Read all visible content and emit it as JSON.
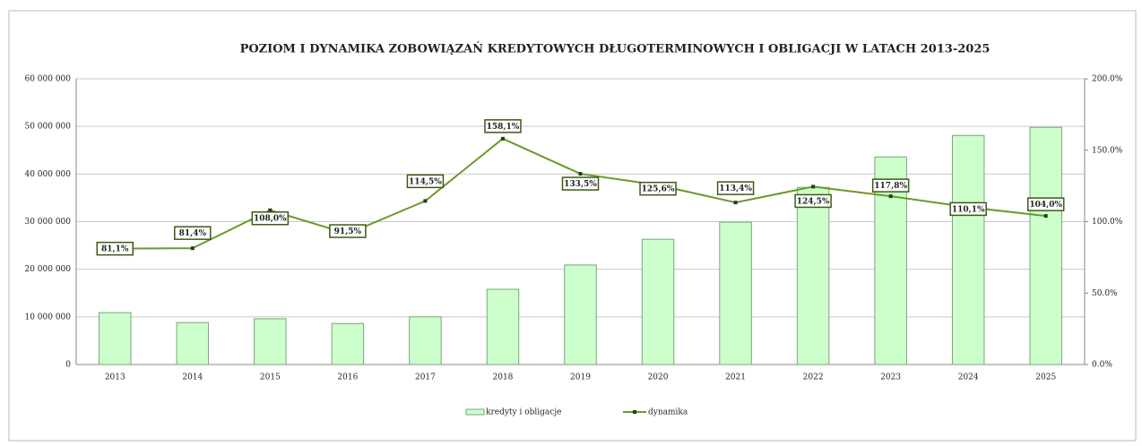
{
  "chart_data": {
    "type": "bar",
    "title": "POZIOM I DYNAMIKA ZOBOWIĄZAŃ KREDYTOWYCH DŁUGOTERMINOWYCH  I OBLIGACJI W LATACH 2013-2025",
    "categories": [
      "2013",
      "2014",
      "2015",
      "2016",
      "2017",
      "2018",
      "2019",
      "2020",
      "2021",
      "2022",
      "2023",
      "2024",
      "2025"
    ],
    "series": [
      {
        "name": "kredyty i obligacje",
        "type": "bar",
        "color": "#ccffcc",
        "values": [
          10900000,
          8800000,
          9600000,
          8600000,
          10000000,
          15800000,
          20900000,
          26300000,
          29900000,
          37200000,
          43600000,
          48100000,
          49800000
        ]
      },
      {
        "name": "dynamika",
        "type": "line",
        "axis": "y2",
        "color": "#6a9a2a",
        "values": [
          81.1,
          81.4,
          108.0,
          91.5,
          114.5,
          158.1,
          133.5,
          125.6,
          113.4,
          124.5,
          117.8,
          110.1,
          104.0
        ],
        "value_labels": [
          "81,1%",
          "81,4%",
          "108,0%",
          "91,5%",
          "114,5%",
          "158,1%",
          "133,5%",
          "125,6%",
          "113,4%",
          "124,5%",
          "117,8%",
          "110,1%",
          "104,0%"
        ]
      }
    ],
    "ylim": [
      0,
      60000000
    ],
    "yticks": [
      0,
      {
        "value": 10000000,
        "label": "10 000 000"
      },
      {
        "value": 20000000,
        "label": "20 000 000"
      },
      {
        "value": 30000000,
        "label": "30 000 000"
      },
      {
        "value": 40000000,
        "label": "40 000 000"
      },
      {
        "value": 50000000,
        "label": "50 000 000"
      },
      {
        "value": 60000000,
        "label": "60 000 000"
      }
    ],
    "y2lim": [
      0,
      200
    ],
    "y2ticks": [
      {
        "value": 0,
        "label": "0.0%"
      },
      {
        "value": 50,
        "label": "50.0%"
      },
      {
        "value": 100,
        "label": "100.0%"
      },
      {
        "value": 150,
        "label": "150.0%"
      },
      {
        "value": 200,
        "label": "200.0%"
      }
    ],
    "grid": true,
    "legend": "bottom"
  }
}
